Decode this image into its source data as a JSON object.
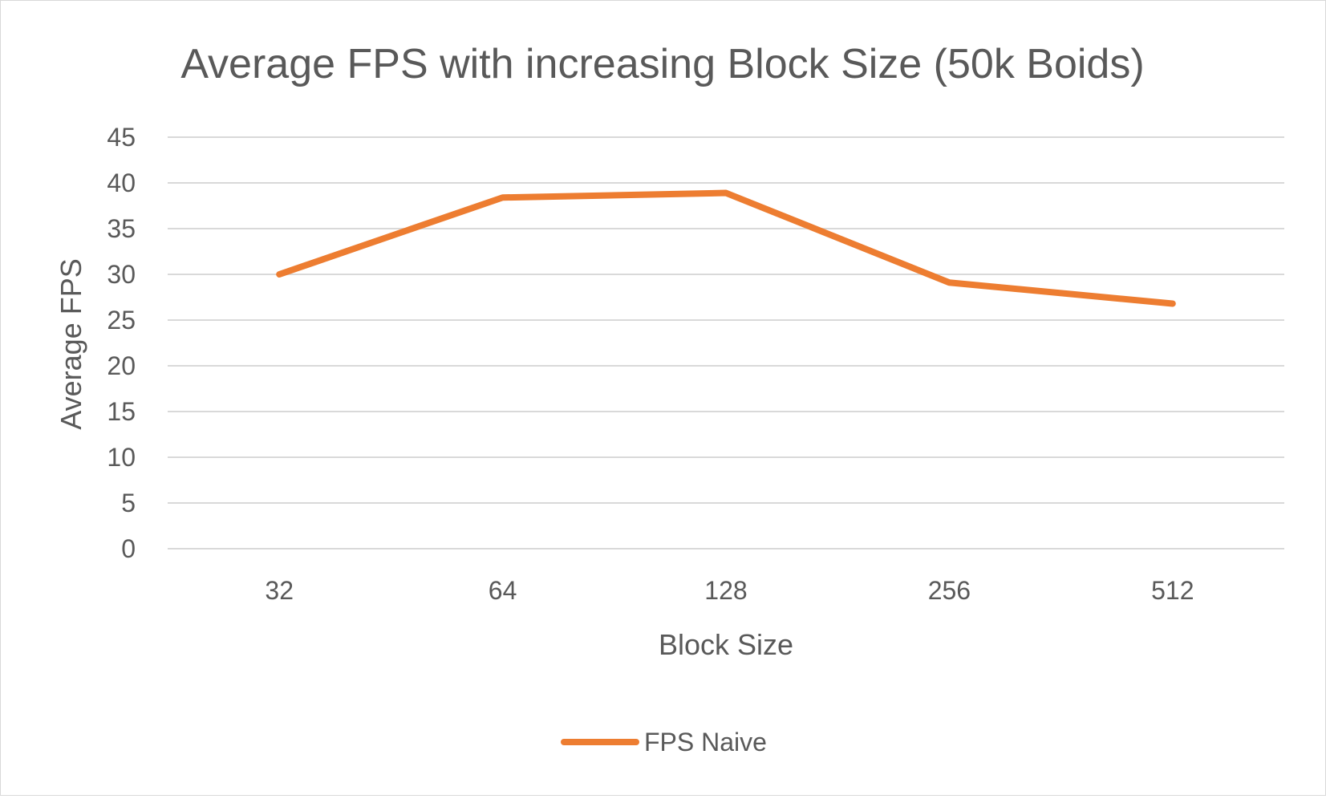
{
  "chart_data": {
    "type": "line",
    "title": "Average FPS with increasing Block Size (50k Boids)",
    "xlabel": "Block Size",
    "ylabel": "Average FPS",
    "categories": [
      "32",
      "64",
      "128",
      "256",
      "512"
    ],
    "series": [
      {
        "name": "FPS Naive",
        "values": [
          30.0,
          38.4,
          38.9,
          29.1,
          26.8
        ],
        "color": "#ed7d31"
      }
    ],
    "ylim": [
      0,
      45
    ],
    "yticks": [
      0,
      5,
      10,
      15,
      20,
      25,
      30,
      35,
      40,
      45
    ],
    "grid": true,
    "legend": "bottom",
    "colors": {
      "gridline": "#d9d9d9",
      "text": "#595959"
    }
  }
}
